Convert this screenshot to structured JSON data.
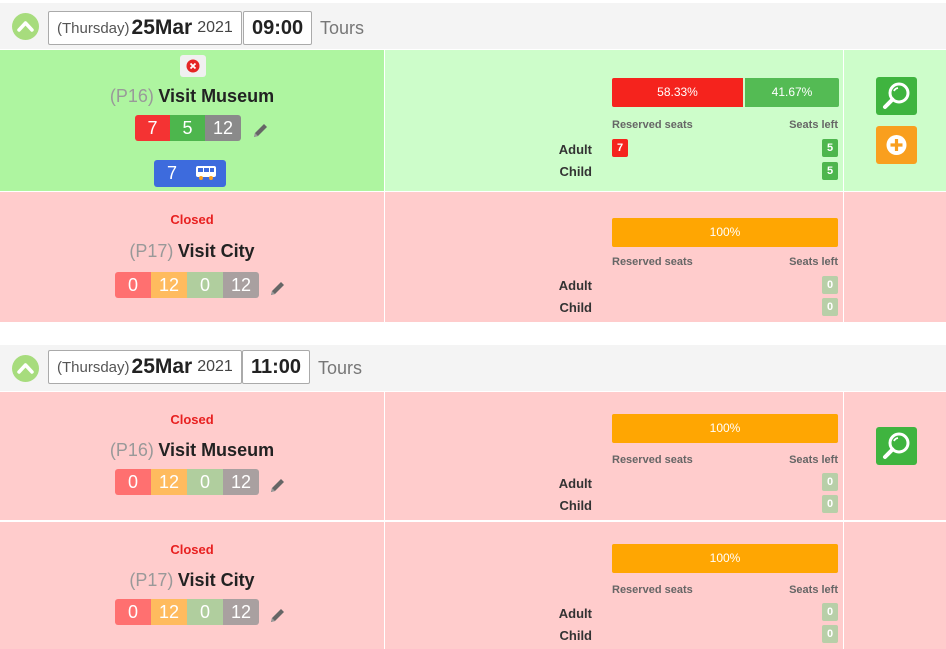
{
  "colors": {
    "open_bg": "#cdfdca",
    "open_left_bg": "#aef5a0",
    "closed_bg": "#ffcccc",
    "reserved": "#f5231d",
    "seats_left": "#54bb54",
    "full": "#ffa602",
    "search_button": "#3fb43f",
    "add_button": "#f99f1e",
    "bus_badge": "#3d6bdd"
  },
  "slots": [
    {
      "weekday": "(Thursday)",
      "date": "25Mar",
      "year": "2021",
      "time": "09:00",
      "type": "Tours",
      "tours": [
        {
          "code": "(P16)",
          "name": "Visit Museum",
          "status": "",
          "cancel_icon": "close-circle-icon",
          "counters": [
            "7",
            "5",
            "12"
          ],
          "bus": {
            "count": "7",
            "icon": "bus-icon"
          },
          "bar": {
            "reserved_label": "58.33%",
            "left_label": "41.67%",
            "reserved_fraction": 0.5833
          },
          "reserved_label": "Reserved seats",
          "left_label": "Seats left",
          "seats": [
            {
              "type": "Adult",
              "reserved": "7",
              "left": "5"
            },
            {
              "type": "Child",
              "reserved": "",
              "left": "5"
            }
          ]
        },
        {
          "code": "(P17)",
          "name": "Visit City",
          "status": "Closed",
          "counters": [
            "0",
            "12",
            "0",
            "12"
          ],
          "bar": {
            "full_label": "100%"
          },
          "reserved_label": "Reserved seats",
          "left_label": "Seats left",
          "seats": [
            {
              "type": "Adult",
              "left": "0"
            },
            {
              "type": "Child",
              "left": "0"
            }
          ]
        }
      ],
      "actions": [
        "search",
        "add"
      ]
    },
    {
      "weekday": "(Thursday)",
      "date": "25Mar",
      "year": "2021",
      "time": "11:00",
      "type": "Tours",
      "tours": [
        {
          "code": "(P16)",
          "name": "Visit Museum",
          "status": "Closed",
          "counters": [
            "0",
            "12",
            "0",
            "12"
          ],
          "bar": {
            "full_label": "100%"
          },
          "reserved_label": "Reserved seats",
          "left_label": "Seats left",
          "seats": [
            {
              "type": "Adult",
              "left": "0"
            },
            {
              "type": "Child",
              "left": "0"
            }
          ]
        },
        {
          "code": "(P17)",
          "name": "Visit City",
          "status": "Closed",
          "counters": [
            "0",
            "12",
            "0",
            "12"
          ],
          "bar": {
            "full_label": "100%"
          },
          "reserved_label": "Reserved seats",
          "left_label": "Seats left",
          "seats": [
            {
              "type": "Adult",
              "left": "0"
            },
            {
              "type": "Child",
              "left": "0"
            }
          ]
        }
      ],
      "actions": [
        "search"
      ]
    }
  ]
}
